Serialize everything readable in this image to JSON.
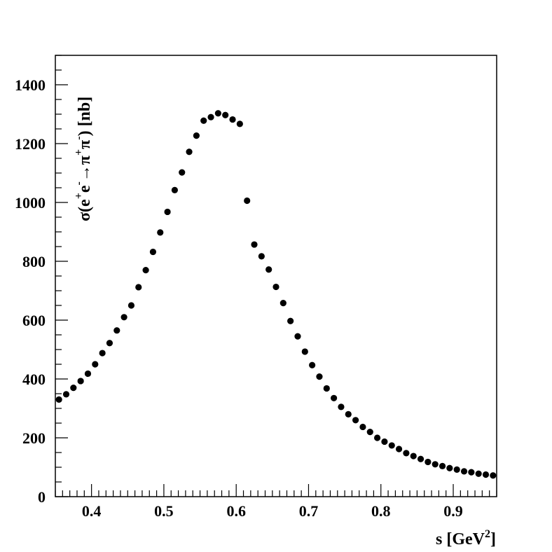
{
  "chart_data": {
    "type": "scatter",
    "title": "",
    "xlabel_main": "s [GeV",
    "xlabel_sup": "2",
    "xlabel_end": "]",
    "ylabel_parts": {
      "sigma": "σ(e",
      "plus1": "+",
      "e2": "e",
      "minus": "-",
      "arrow": "→π",
      "plus2": "+",
      "pi": "π",
      "minus2": "-",
      "end": ") [nb]"
    },
    "xlim": [
      0.35,
      0.96
    ],
    "ylim": [
      0,
      1500
    ],
    "x_ticks": [
      0.4,
      0.5,
      0.6,
      0.7,
      0.8,
      0.9
    ],
    "x_tick_labels": [
      "0.4",
      "0.5",
      "0.6",
      "0.7",
      "0.8",
      "0.9"
    ],
    "y_ticks": [
      0,
      200,
      400,
      600,
      800,
      1000,
      1200,
      1400
    ],
    "y_tick_labels": [
      "0",
      "200",
      "400",
      "600",
      "800",
      "1000",
      "1200",
      "1400"
    ],
    "grid": false,
    "legend": "none",
    "marker_color": "#000000",
    "series": [
      {
        "x": [
          0.355,
          0.365,
          0.375,
          0.385,
          0.395,
          0.405,
          0.415,
          0.425,
          0.435,
          0.445,
          0.455,
          0.465,
          0.475,
          0.485,
          0.495,
          0.505,
          0.515,
          0.525,
          0.535,
          0.545,
          0.555,
          0.565,
          0.575,
          0.585,
          0.595,
          0.605,
          0.615,
          0.625,
          0.635,
          0.645,
          0.655,
          0.665,
          0.675,
          0.685,
          0.695,
          0.705,
          0.715,
          0.725,
          0.735,
          0.745,
          0.755,
          0.765,
          0.775,
          0.785,
          0.795,
          0.805,
          0.815,
          0.825,
          0.835,
          0.845,
          0.855,
          0.865,
          0.875,
          0.885,
          0.895,
          0.905,
          0.915,
          0.925,
          0.935,
          0.945,
          0.955
        ],
        "y": [
          330,
          348,
          370,
          393,
          418,
          450,
          488,
          522,
          565,
          610,
          650,
          712,
          770,
          832,
          898,
          968,
          1042,
          1102,
          1172,
          1227,
          1278,
          1290,
          1303,
          1297,
          1282,
          1267,
          1006,
          857,
          817,
          772,
          713,
          658,
          597,
          545,
          493,
          447,
          408,
          368,
          335,
          305,
          280,
          260,
          237,
          220,
          200,
          187,
          174,
          162,
          148,
          138,
          128,
          118,
          110,
          104,
          97,
          92,
          86,
          83,
          78,
          75,
          72
        ]
      }
    ]
  }
}
